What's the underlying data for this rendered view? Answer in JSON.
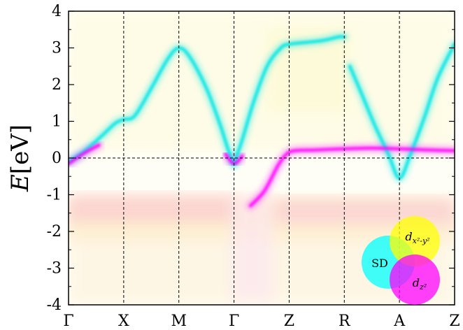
{
  "chart_data": {
    "type": "line",
    "title": "",
    "ylabel": "E[eV]",
    "xlabel": "",
    "ylim": [
      -4,
      4
    ],
    "yticks": [
      4,
      3,
      2,
      1,
      0,
      -1,
      -2,
      -3,
      -4
    ],
    "ytick_labels": [
      "4",
      "3",
      "2",
      "1",
      "0",
      "-1",
      "-2",
      "-3",
      "-4"
    ],
    "kpoints": [
      "Γ",
      "X",
      "M",
      "Γ",
      "Z",
      "R",
      "A",
      "Z"
    ],
    "fermi_level": 0,
    "x": [
      0,
      1,
      2,
      3,
      4,
      5,
      6,
      7
    ],
    "series": [
      {
        "color": "#00e5e5",
        "points": [
          [
            0,
            -0.1
          ],
          [
            0.3,
            0.2
          ],
          [
            0.6,
            0.6
          ],
          [
            0.85,
            0.95
          ],
          [
            1.0,
            1.05
          ],
          [
            1.2,
            1.15
          ],
          [
            1.5,
            1.9
          ],
          [
            1.8,
            2.7
          ],
          [
            2.0,
            3.0
          ],
          [
            2.2,
            2.75
          ],
          [
            2.5,
            1.9
          ],
          [
            2.75,
            0.9
          ],
          [
            2.9,
            0.2
          ],
          [
            3.0,
            -0.15
          ]
        ]
      },
      {
        "color": "#00e5e5",
        "points": [
          [
            3.0,
            -0.15
          ],
          [
            3.15,
            0.5
          ],
          [
            3.35,
            1.5
          ],
          [
            3.6,
            2.5
          ],
          [
            3.85,
            3.0
          ],
          [
            4.0,
            3.1
          ],
          [
            4.3,
            3.15
          ],
          [
            4.6,
            3.2
          ],
          [
            4.9,
            3.3
          ],
          [
            5.0,
            3.3
          ]
        ]
      },
      {
        "color": "#00e5e5",
        "points": [
          [
            5.1,
            2.5
          ],
          [
            5.3,
            1.8
          ],
          [
            5.55,
            0.9
          ],
          [
            5.8,
            0.1
          ],
          [
            6.0,
            -0.55
          ],
          [
            6.2,
            0.1
          ],
          [
            6.45,
            1.1
          ],
          [
            6.7,
            2.2
          ],
          [
            7.0,
            3.1
          ]
        ]
      },
      {
        "color": "#ff00ff",
        "points": [
          [
            0,
            -0.15
          ],
          [
            0.3,
            0.15
          ],
          [
            0.55,
            0.35
          ]
        ]
      },
      {
        "color": "#ff00ff",
        "points": [
          [
            2.85,
            0.1
          ],
          [
            3.0,
            -0.15
          ],
          [
            3.15,
            0.05
          ]
        ]
      },
      {
        "color": "#ff00ff",
        "points": [
          [
            3.3,
            -1.3
          ],
          [
            3.55,
            -0.9
          ],
          [
            3.8,
            -0.2
          ],
          [
            3.95,
            0.1
          ],
          [
            4.1,
            0.2
          ],
          [
            4.5,
            0.22
          ],
          [
            5.0,
            0.25
          ],
          [
            5.5,
            0.27
          ],
          [
            6.0,
            0.25
          ],
          [
            6.5,
            0.22
          ],
          [
            7.0,
            0.2
          ]
        ]
      }
    ],
    "legend": {
      "placement": "bottom-right",
      "type": "venn",
      "entries": [
        {
          "label": "SD",
          "color": "#00ffff"
        },
        {
          "label": "d_{x²-y²}",
          "color": "#ffff00"
        },
        {
          "label": "d_{z²}",
          "color": "#ff00ff"
        }
      ]
    }
  }
}
